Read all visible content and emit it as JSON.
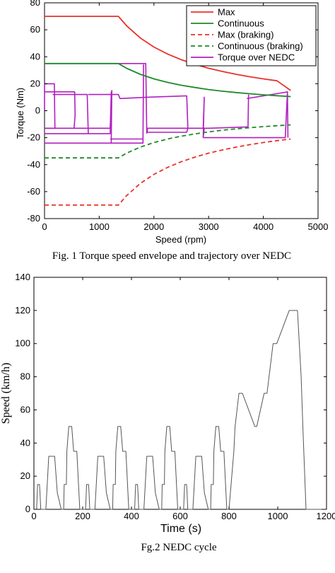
{
  "chart_data": [
    {
      "type": "line",
      "caption": "Fig. 1 Torque speed envelope and trajectory over NEDC",
      "xlabel": "Speed (rpm)",
      "ylabel": "Torque (Nm)",
      "xlim": [
        0,
        5000
      ],
      "ylim": [
        -80,
        80
      ],
      "xticks": [
        0,
        1000,
        2000,
        3000,
        4000,
        5000
      ],
      "yticks": [
        -80,
        -60,
        -40,
        -20,
        0,
        20,
        40,
        60,
        80
      ],
      "legend_position": "top-right",
      "series": [
        {
          "name": "Max",
          "color": "#e8322b",
          "dash": "solid",
          "x": [
            0,
            1350,
            1500,
            1750,
            2000,
            2250,
            2500,
            2750,
            3000,
            3250,
            3500,
            3750,
            4000,
            4250,
            4500
          ],
          "y": [
            70,
            70,
            63,
            54,
            47.2,
            42,
            37.8,
            34.4,
            31.5,
            29.1,
            27,
            25.2,
            23.6,
            22.2,
            15
          ]
        },
        {
          "name": "Continuous",
          "color": "#1f8a2a",
          "dash": "solid",
          "x": [
            0,
            1350,
            1500,
            1750,
            2000,
            2250,
            2500,
            2750,
            3000,
            3250,
            3500,
            3750,
            4000,
            4250,
            4500
          ],
          "y": [
            35,
            35,
            31.5,
            27,
            23.6,
            21,
            18.9,
            17.2,
            15.7,
            14.5,
            13.5,
            12.6,
            11.8,
            11.1,
            10.5
          ]
        },
        {
          "name": "Max (braking)",
          "color": "#e8322b",
          "dash": "dashed",
          "x": [
            0,
            1350,
            1500,
            1750,
            2000,
            2250,
            2500,
            2750,
            3000,
            3250,
            3500,
            3750,
            4000,
            4250,
            4500
          ],
          "y": [
            -70,
            -70,
            -63,
            -54,
            -47.2,
            -42,
            -37.8,
            -34.4,
            -31.5,
            -29.1,
            -27,
            -25.2,
            -23.6,
            -22.2,
            -21
          ]
        },
        {
          "name": "Continuous (braking)",
          "color": "#1f8a2a",
          "dash": "dashed",
          "x": [
            0,
            1350,
            1500,
            1750,
            2000,
            2250,
            2500,
            2750,
            3000,
            3250,
            3500,
            3750,
            4000,
            4250,
            4500
          ],
          "y": [
            -35,
            -35,
            -31.5,
            -27,
            -23.6,
            -21,
            -18.9,
            -17.2,
            -15.7,
            -14.5,
            -13.5,
            -12.6,
            -11.8,
            -11.1,
            -10.5
          ]
        },
        {
          "name": "Torque over NEDC",
          "color": "#b21fc0",
          "dash": "solid",
          "segments": [
            {
              "x": [
                0,
                0,
                180,
                190,
                0
              ],
              "y": [
                0,
                20,
                20,
                -13,
                -13
              ]
            },
            {
              "x": [
                0,
                550,
                560,
                540
              ],
              "y": [
                14,
                14,
                -3,
                -13
              ]
            },
            {
              "x": [
                0,
                1200,
                1230,
                1220,
                0
              ],
              "y": [
                -13,
                -13,
                15,
                -24,
                -24
              ]
            },
            {
              "x": [
                1220,
                1800,
                1810,
                1800,
                1200
              ],
              "y": [
                -24,
                -24,
                34,
                -21,
                -21
              ]
            },
            {
              "x": [
                0,
                1850,
                1870
              ],
              "y": [
                35,
                35,
                -17
              ]
            },
            {
              "x": [
                0,
                1200,
                1220
              ],
              "y": [
                -17,
                -17,
                14
              ]
            },
            {
              "x": [
                150,
                780,
                800,
                780
              ],
              "y": [
                12,
                12,
                -17,
                12
              ]
            },
            {
              "x": [
                800,
                1350,
                1380,
                1880
              ],
              "y": [
                12,
                12,
                9,
                10
              ]
            },
            {
              "x": [
                1880,
                2600,
                2620,
                2600,
                1880
              ],
              "y": [
                10,
                11,
                -13,
                -16,
                -16
              ]
            },
            {
              "x": [
                1880,
                1880,
                2900,
                2920,
                2900
              ],
              "y": [
                -16,
                -13,
                -13,
                10,
                -20
              ]
            },
            {
              "x": [
                2900,
                2920,
                3000,
                3700,
                3720,
                3730
              ],
              "y": [
                -20,
                -13,
                -13,
                -12,
                -12,
                12
              ]
            },
            {
              "x": [
                2900,
                4400,
                4440,
                4450
              ],
              "y": [
                -20,
                -20,
                14,
                -20
              ]
            },
            {
              "x": [
                3700,
                4450
              ],
              "y": [
                9,
                14
              ]
            }
          ]
        }
      ]
    },
    {
      "type": "line",
      "caption": "Fg.2 NEDC cycle",
      "xlabel": "Time (s)",
      "ylabel": "Speed (km/h)",
      "xlim": [
        0,
        1200
      ],
      "ylim": [
        0,
        140
      ],
      "xticks": [
        0,
        200,
        400,
        600,
        800,
        1000,
        1200
      ],
      "yticks": [
        0,
        20,
        40,
        60,
        80,
        100,
        120,
        140
      ],
      "series": [
        {
          "color": "#555555",
          "x": [
            0,
            11,
            15,
            23,
            25,
            28,
            44,
            49,
            61,
            85,
            96,
            112,
            117,
            122,
            124,
            133,
            135,
            143,
            155,
            163,
            176,
            188,
            195,
            207,
            212,
            216,
            224,
            226,
            229,
            245,
            250,
            262,
            286,
            297,
            313,
            318,
            323,
            325,
            334,
            336,
            344,
            356,
            364,
            377,
            389,
            396,
            408,
            413,
            417,
            425,
            427,
            430,
            446,
            451,
            463,
            487,
            498,
            514,
            519,
            524,
            526,
            535,
            537,
            545,
            557,
            565,
            578,
            590,
            597,
            609,
            614,
            618,
            626,
            628,
            631,
            647,
            652,
            664,
            688,
            699,
            715,
            720,
            725,
            727,
            736,
            738,
            746,
            758,
            766,
            779,
            791,
            798,
            800,
            820,
            825,
            841,
            855,
            906,
            914,
            944,
            956,
            981,
            996,
            1047,
            1055,
            1081,
            1096,
            1103,
            1116,
            1123,
            1126,
            1129,
            1141,
            1150,
            1159,
            1170,
            1180
          ],
          "y": [
            0,
            0,
            15,
            15,
            10,
            0,
            0,
            0,
            32,
            32,
            10,
            0,
            0,
            0,
            15,
            15,
            35,
            50,
            50,
            35,
            35,
            0,
            0,
            0,
            0,
            15,
            15,
            10,
            0,
            0,
            0,
            32,
            32,
            10,
            0,
            0,
            0,
            15,
            15,
            35,
            50,
            50,
            35,
            35,
            0,
            0,
            0,
            0,
            15,
            15,
            10,
            0,
            0,
            0,
            32,
            32,
            10,
            0,
            0,
            0,
            15,
            15,
            35,
            50,
            50,
            35,
            35,
            0,
            0,
            0,
            0,
            15,
            15,
            10,
            0,
            0,
            0,
            32,
            32,
            10,
            0,
            0,
            0,
            15,
            15,
            35,
            50,
            50,
            35,
            35,
            0,
            0,
            0,
            35,
            50,
            70,
            70,
            50,
            50,
            70,
            70,
            100,
            100,
            120,
            120,
            120,
            80,
            50,
            0,
            0,
            0,
            0,
            0,
            0,
            0,
            0,
            0
          ]
        }
      ]
    }
  ]
}
